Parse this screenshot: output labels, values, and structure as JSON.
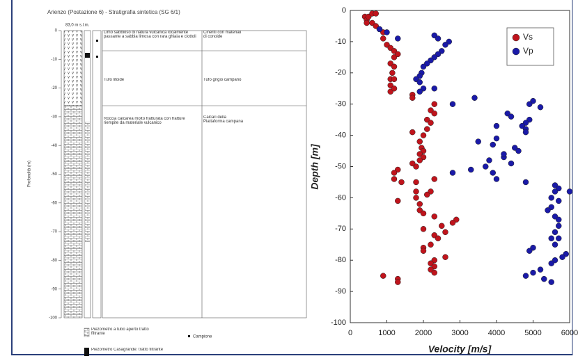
{
  "log": {
    "title": "Arienzo (Postazione 6) - Stratigrafia sintetica (SG 6/1)",
    "elevation": "83,0 m s.l.m.",
    "axis_label": "Profondità (m)",
    "depth_ticks": [
      0,
      -10,
      -20,
      -30,
      -40,
      -50,
      -60,
      -70,
      -80,
      -90,
      -100
    ],
    "layers": [
      {
        "description": "Limo sabbioso di natura vulcanica localmente passante a sabbia limosa con rara ghiaia e ciottoli",
        "unit": "Cineriti con materiali di conoide"
      },
      {
        "description": "Tufo litoide",
        "unit": "Tufo grigio campano"
      },
      {
        "description": "Roccia calcarea molto fratturata con fratture riempite da materiale vulcanico",
        "unit": "Calcari della Piattaforma campana"
      }
    ],
    "legend": [
      "Piezometro a tubo aperto tratto filtrante",
      "Piezometro Casagrande: tratto filtrante",
      "Campione"
    ]
  },
  "chart_data": {
    "type": "scatter",
    "xlabel": "Velocity [m/s]",
    "ylabel": "Depth [m]",
    "xlim": [
      0,
      6000
    ],
    "xticks": [
      0,
      1000,
      2000,
      3000,
      4000,
      5000,
      6000
    ],
    "ylim": [
      -100,
      0
    ],
    "yticks": [
      -100,
      -90,
      -80,
      -70,
      -60,
      -50,
      -40,
      -30,
      -20,
      -10,
      0
    ],
    "legend": "upper right",
    "series": [
      {
        "name": "Vs",
        "color": "#c0141c",
        "x": [
          400,
          450,
          500,
          600,
          700,
          450,
          600,
          700,
          800,
          900,
          900,
          1000,
          1100,
          1200,
          1200,
          1100,
          1200,
          1150,
          1100,
          1100,
          1100,
          1200,
          1300,
          1200,
          1700,
          1700,
          2300,
          2200,
          2300,
          2100,
          2200,
          2100,
          1700,
          2000,
          1900,
          1950,
          2000,
          1900,
          2000,
          1900,
          1800,
          1700,
          1300,
          1200,
          1200,
          1400,
          1800,
          2300,
          1800,
          2200,
          2100,
          1800,
          1300,
          1900,
          1900,
          2000,
          2300,
          2900,
          2800,
          2500,
          2000,
          2300,
          2600,
          2400,
          2200,
          2000,
          2000,
          2600,
          2300,
          2200,
          2300,
          2200,
          2300,
          900,
          1300,
          1300
        ],
        "values": [
          -2,
          -3,
          -2,
          -1,
          -1,
          -4,
          -4,
          -5,
          -6,
          -7,
          -9,
          -11,
          -12,
          -13,
          -15,
          -17,
          -18,
          -20,
          -22,
          -24,
          -26,
          -25,
          -14,
          -22,
          -27,
          -28,
          -30,
          -32,
          -33,
          -35,
          -36,
          -38,
          -39,
          -40,
          -42,
          -44,
          -45,
          -46,
          -47,
          -48,
          -50,
          -49,
          -51,
          -52,
          -54,
          -55,
          -55,
          -54,
          -58,
          -58,
          -59,
          -60,
          -61,
          -62,
          -64,
          -65,
          -66,
          -67,
          -68,
          -69,
          -70,
          -72,
          -71,
          -73,
          -75,
          -76,
          -77,
          -79,
          -80,
          -81,
          -82,
          -83,
          -84,
          -85,
          -86,
          -87
        ]
      },
      {
        "name": "Vp",
        "color": "#1a1aa8",
        "x": [
          800,
          1000,
          1300,
          2300,
          2400,
          2700,
          2600,
          2500,
          2400,
          2300,
          2200,
          2100,
          2000,
          1950,
          1900,
          1800,
          1900,
          2000,
          1900,
          2300,
          3400,
          2800,
          5000,
          4900,
          5200,
          4300,
          4400,
          4900,
          4800,
          4000,
          4700,
          4800,
          4800,
          3500,
          4000,
          3900,
          4500,
          4600,
          4200,
          4200,
          3800,
          3700,
          4400,
          3300,
          2800,
          3900,
          4000,
          4800,
          5600,
          5700,
          6000,
          5600,
          5500,
          5700,
          5500,
          5400,
          5600,
          5700,
          5700,
          5600,
          5500,
          5700,
          5600,
          5000,
          4900,
          5900,
          5800,
          5600,
          5500,
          5000,
          4800,
          5200,
          5300,
          5500
        ],
        "values": [
          -6,
          -7,
          -9,
          -8,
          -9,
          -10,
          -11,
          -13,
          -14,
          -15,
          -16,
          -17,
          -18,
          -20,
          -21,
          -22,
          -23,
          -25,
          -26,
          -25,
          -28,
          -30,
          -29,
          -30,
          -31,
          -33,
          -34,
          -35,
          -36,
          -37,
          -37,
          -38,
          -39,
          -42,
          -41,
          -43,
          -44,
          -45,
          -47,
          -46,
          -48,
          -50,
          -49,
          -51,
          -52,
          -52,
          -54,
          -55,
          -56,
          -57,
          -58,
          -58,
          -60,
          -61,
          -63,
          -64,
          -66,
          -67,
          -69,
          -71,
          -73,
          -73,
          -75,
          -76,
          -77,
          -78,
          -79,
          -80,
          -81,
          -84,
          -85,
          -83,
          -86,
          -87
        ]
      }
    ]
  }
}
